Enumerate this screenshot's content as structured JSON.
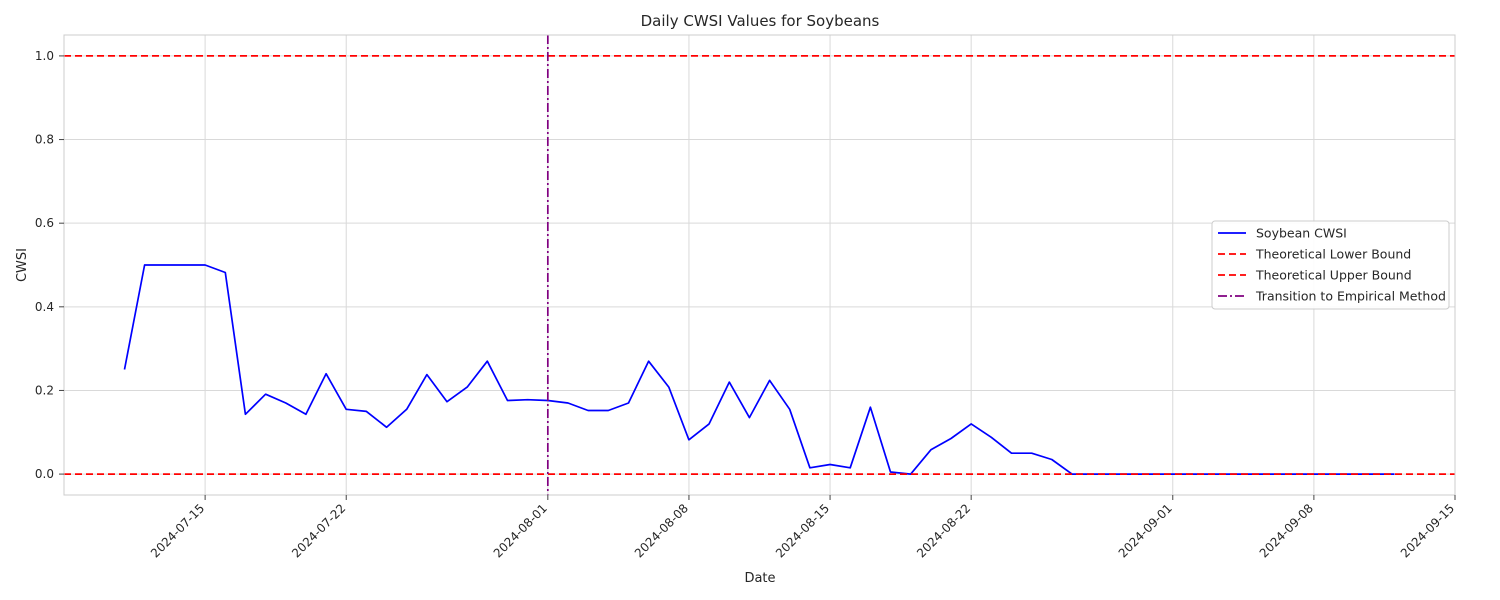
{
  "chart_data": {
    "type": "line",
    "title": "Daily CWSI Values for Soybeans",
    "xlabel": "Date",
    "ylabel": "CWSI",
    "xlim": [
      "2024-07-08",
      "2024-09-15"
    ],
    "ylim": [
      -0.05,
      1.05
    ],
    "x_ticks": [
      "2024-07-15",
      "2024-07-22",
      "2024-08-01",
      "2024-08-08",
      "2024-08-15",
      "2024-08-22",
      "2024-09-01",
      "2024-09-08",
      "2024-09-15"
    ],
    "y_ticks": [
      "0.0",
      "0.2",
      "0.4",
      "0.6",
      "0.8",
      "1.0"
    ],
    "grid": true,
    "legend_position": "center-right",
    "series": [
      {
        "name": "Soybean CWSI",
        "style": "solid",
        "color": "#0000ff",
        "x": [
          "2024-07-11",
          "2024-07-12",
          "2024-07-13",
          "2024-07-14",
          "2024-07-15",
          "2024-07-16",
          "2024-07-17",
          "2024-07-18",
          "2024-07-19",
          "2024-07-20",
          "2024-07-21",
          "2024-07-22",
          "2024-07-23",
          "2024-07-24",
          "2024-07-25",
          "2024-07-26",
          "2024-07-27",
          "2024-07-28",
          "2024-07-29",
          "2024-07-30",
          "2024-07-31",
          "2024-08-01",
          "2024-08-02",
          "2024-08-03",
          "2024-08-04",
          "2024-08-05",
          "2024-08-06",
          "2024-08-07",
          "2024-08-08",
          "2024-08-09",
          "2024-08-10",
          "2024-08-11",
          "2024-08-12",
          "2024-08-13",
          "2024-08-14",
          "2024-08-15",
          "2024-08-16",
          "2024-08-17",
          "2024-08-18",
          "2024-08-19",
          "2024-08-20",
          "2024-08-21",
          "2024-08-22",
          "2024-08-23",
          "2024-08-24",
          "2024-08-25",
          "2024-08-26",
          "2024-08-27",
          "2024-08-28",
          "2024-08-29",
          "2024-08-30",
          "2024-08-31",
          "2024-09-01",
          "2024-09-02",
          "2024-09-03",
          "2024-09-04",
          "2024-09-05",
          "2024-09-06",
          "2024-09-07",
          "2024-09-08",
          "2024-09-09",
          "2024-09-10",
          "2024-09-11",
          "2024-09-12"
        ],
        "y": [
          0.25,
          0.5,
          0.5,
          0.5,
          0.5,
          0.482,
          0.143,
          0.191,
          0.17,
          0.143,
          0.24,
          0.155,
          0.15,
          0.112,
          0.155,
          0.238,
          0.173,
          0.208,
          0.27,
          0.176,
          0.178,
          0.176,
          0.17,
          0.152,
          0.152,
          0.17,
          0.27,
          0.208,
          0.082,
          0.12,
          0.22,
          0.135,
          0.224,
          0.155,
          0.015,
          0.023,
          0.015,
          0.16,
          0.005,
          0.0,
          0.058,
          0.085,
          0.12,
          0.088,
          0.05,
          0.05,
          0.035,
          0.0,
          0.0,
          0.0,
          0.0,
          0.0,
          0.0,
          0.0,
          0.0,
          0.0,
          0.0,
          0.0,
          0.0,
          0.0,
          0.0,
          0.0,
          0.0,
          0.0
        ]
      },
      {
        "name": "Theoretical Lower Bound",
        "style": "dashed",
        "color": "#ff0000",
        "y_constant": 0.0
      },
      {
        "name": "Theoretical Upper Bound",
        "style": "dashed",
        "color": "#ff0000",
        "y_constant": 1.0
      },
      {
        "name": "Transition to Empirical Method",
        "style": "dashdot",
        "color": "#800080",
        "x_constant": "2024-08-01"
      }
    ]
  }
}
